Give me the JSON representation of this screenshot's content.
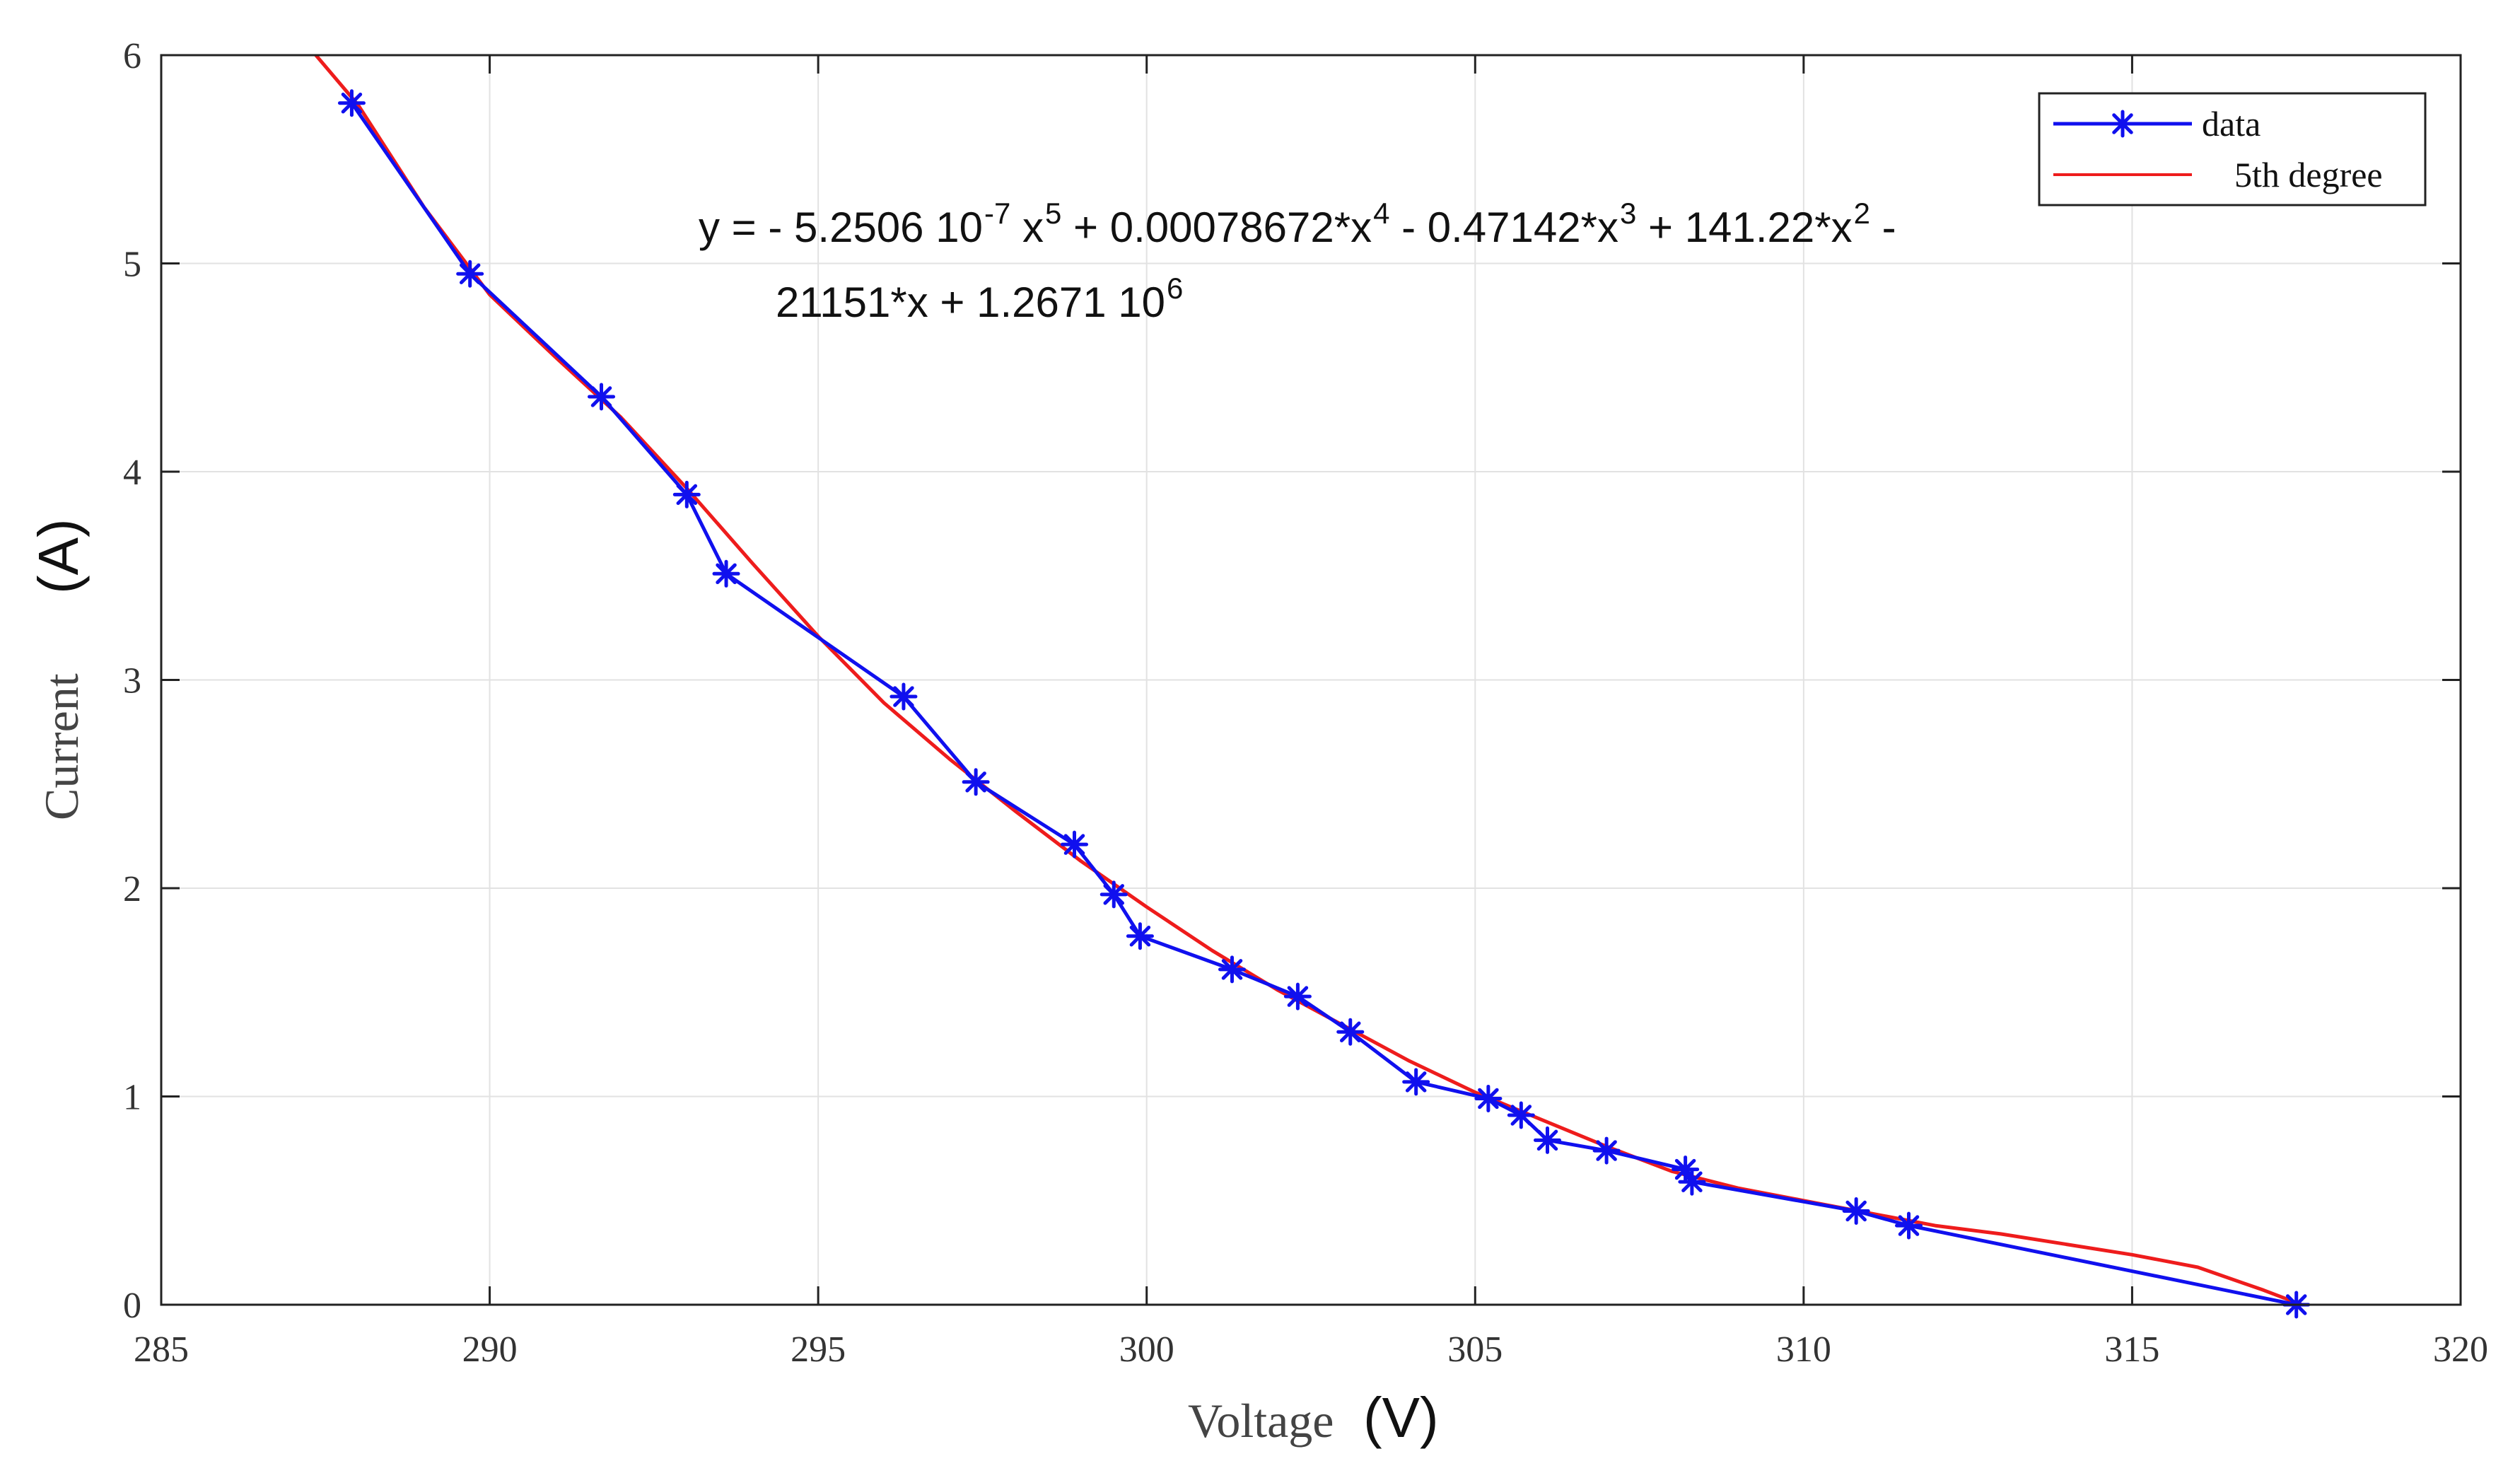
{
  "chart_data": {
    "type": "line",
    "xlabel": "Voltage",
    "xunit": "(V)",
    "ylabel": "Current",
    "yunit": "(A)",
    "xlim": [
      285,
      320
    ],
    "ylim": [
      0,
      6
    ],
    "xticks": [
      285,
      290,
      295,
      300,
      305,
      310,
      315,
      320
    ],
    "yticks": [
      0,
      1,
      2,
      3,
      4,
      5,
      6
    ],
    "grid": true,
    "legend_position": "top-right",
    "colors": {
      "data": "#1010ee",
      "fit": "#ee1c1c",
      "grid": "#e2e2e2",
      "axis": "#222222"
    },
    "series": [
      {
        "name": "data",
        "style": "line-with-asterisk-markers",
        "points": [
          [
            287.9,
            5.77
          ],
          [
            289.7,
            4.95
          ],
          [
            291.7,
            4.36
          ],
          [
            293.0,
            3.89
          ],
          [
            293.6,
            3.51
          ],
          [
            296.3,
            2.92
          ],
          [
            297.4,
            2.51
          ],
          [
            298.9,
            2.21
          ],
          [
            299.5,
            1.97
          ],
          [
            299.9,
            1.77
          ],
          [
            301.3,
            1.61
          ],
          [
            302.3,
            1.48
          ],
          [
            303.1,
            1.31
          ],
          [
            304.1,
            1.07
          ],
          [
            305.2,
            0.99
          ],
          [
            305.7,
            0.91
          ],
          [
            306.1,
            0.79
          ],
          [
            307.0,
            0.74
          ],
          [
            308.2,
            0.65
          ],
          [
            308.3,
            0.59
          ],
          [
            310.8,
            0.45
          ],
          [
            311.6,
            0.38
          ],
          [
            317.5,
            0.0
          ]
        ]
      },
      {
        "name": "5th degree",
        "style": "smooth-line",
        "points": [
          [
            287.3,
            6.02
          ],
          [
            288.0,
            5.76
          ],
          [
            289.0,
            5.27
          ],
          [
            290.0,
            4.85
          ],
          [
            291.0,
            4.55
          ],
          [
            292.0,
            4.26
          ],
          [
            293.0,
            3.92
          ],
          [
            294.0,
            3.56
          ],
          [
            295.0,
            3.21
          ],
          [
            296.0,
            2.89
          ],
          [
            297.0,
            2.62
          ],
          [
            298.0,
            2.37
          ],
          [
            299.0,
            2.13
          ],
          [
            300.0,
            1.91
          ],
          [
            301.0,
            1.7
          ],
          [
            302.0,
            1.51
          ],
          [
            303.0,
            1.34
          ],
          [
            304.0,
            1.17
          ],
          [
            305.0,
            1.02
          ],
          [
            306.0,
            0.89
          ],
          [
            307.0,
            0.76
          ],
          [
            308.0,
            0.64
          ],
          [
            309.0,
            0.56
          ],
          [
            310.0,
            0.5
          ],
          [
            311.0,
            0.44
          ],
          [
            312.0,
            0.38
          ],
          [
            313.0,
            0.34
          ],
          [
            314.0,
            0.29
          ],
          [
            315.0,
            0.24
          ],
          [
            316.0,
            0.18
          ],
          [
            317.0,
            0.07
          ],
          [
            317.5,
            0.01
          ],
          [
            318.0,
            -0.05
          ]
        ]
      }
    ],
    "equation": {
      "line1_parts": [
        {
          "t": "y = - 5.2506 10",
          "sup": false
        },
        {
          "t": "-7",
          "sup": true
        },
        {
          "t": " x",
          "sup": false
        },
        {
          "t": "5",
          "sup": true
        },
        {
          "t": " + 0.00078672*x",
          "sup": false
        },
        {
          "t": "4",
          "sup": true
        },
        {
          "t": " - 0.47142*x",
          "sup": false
        },
        {
          "t": "3",
          "sup": true
        },
        {
          "t": " + 141.22*x",
          "sup": false
        },
        {
          "t": "2",
          "sup": true
        },
        {
          "t": " -",
          "sup": false
        }
      ],
      "line2_parts": [
        {
          "t": "21151*x + 1.2671 10",
          "sup": false
        },
        {
          "t": "6",
          "sup": true
        }
      ]
    }
  }
}
